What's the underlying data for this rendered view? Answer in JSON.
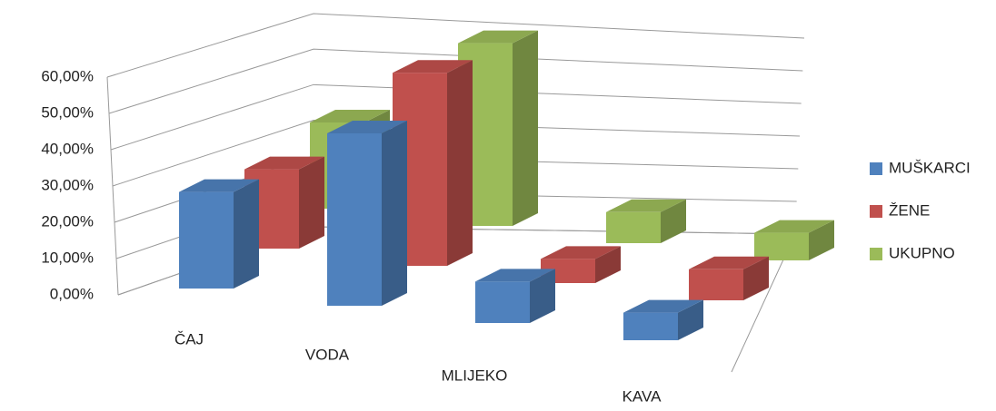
{
  "chart_data": {
    "type": "bar3d",
    "categories": [
      "ČAJ",
      "VODA",
      "MLIJEKO",
      "KAVA"
    ],
    "series": [
      {
        "name": "MUŠKARCI",
        "color": "#4f81bd",
        "values": [
          28,
          50,
          12,
          8
        ]
      },
      {
        "name": "ŽENE",
        "color": "#c0504d",
        "values": [
          23,
          56,
          7,
          9
        ]
      },
      {
        "name": "UKUPNO",
        "color": "#9bbb59",
        "values": [
          25,
          53,
          9,
          8
        ]
      }
    ],
    "ylim": [
      0,
      60
    ],
    "yticks": [
      {
        "value": 0,
        "label": "0,00%"
      },
      {
        "value": 10,
        "label": "10,00%"
      },
      {
        "value": 20,
        "label": "20,00%"
      },
      {
        "value": 30,
        "label": "30,00%"
      },
      {
        "value": 40,
        "label": "40,00%"
      },
      {
        "value": 50,
        "label": "50,00%"
      },
      {
        "value": 60,
        "label": "60,00%"
      }
    ],
    "grid": true,
    "legend": "right"
  }
}
